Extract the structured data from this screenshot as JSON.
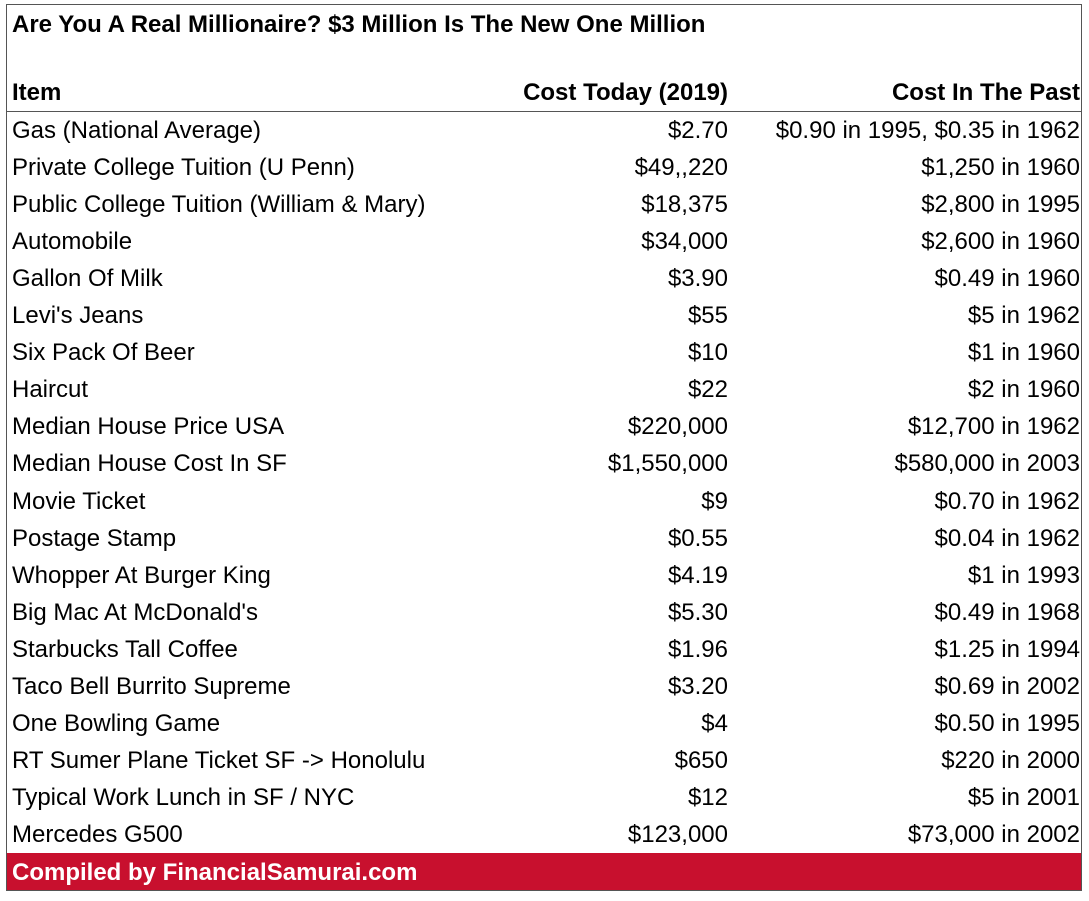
{
  "title": "Are You A Real Millionaire? $3 Million Is The New One Million",
  "table": {
    "header": [
      "Item",
      "Cost Today (2019)",
      "Cost In The Past"
    ],
    "rows": [
      [
        "Gas (National Average)",
        "$2.70",
        "$0.90 in 1995, $0.35 in 1962"
      ],
      [
        "Private College Tuition (U Penn)",
        "$49,,220",
        "$1,250 in 1960"
      ],
      [
        "Public College Tuition (William & Mary)",
        "$18,375",
        "$2,800 in 1995"
      ],
      [
        "Automobile",
        "$34,000",
        "$2,600 in 1960"
      ],
      [
        "Gallon Of Milk",
        "$3.90",
        "$0.49 in 1960"
      ],
      [
        "Levi's Jeans",
        "$55",
        "$5 in 1962"
      ],
      [
        "Six Pack Of Beer",
        "$10",
        "$1 in 1960"
      ],
      [
        "Haircut",
        "$22",
        "$2 in 1960"
      ],
      [
        "Median House Price USA",
        "$220,000",
        "$12,700 in 1962"
      ],
      [
        "Median House Cost In SF",
        "$1,550,000",
        "$580,000 in 2003"
      ],
      [
        "Movie Ticket",
        "$9",
        "$0.70 in 1962"
      ],
      [
        "Postage Stamp",
        "$0.55",
        "$0.04 in 1962"
      ],
      [
        "Whopper At Burger King",
        "$4.19",
        "$1 in 1993"
      ],
      [
        "Big Mac At McDonald's",
        "$5.30",
        "$0.49 in 1968"
      ],
      [
        "Starbucks Tall Coffee",
        "$1.96",
        "$1.25 in 1994"
      ],
      [
        "Taco Bell Burrito Supreme",
        "$3.20",
        "$0.69 in 2002"
      ],
      [
        "One Bowling Game",
        "$4",
        "$0.50 in 1995"
      ],
      [
        "RT Sumer Plane Ticket SF -> Honolulu",
        "$650",
        "$220 in 2000"
      ],
      [
        "Typical Work Lunch in SF / NYC",
        "$12",
        "$5 in 2001"
      ],
      [
        "Mercedes G500",
        "$123,000",
        "$73,000 in 2002"
      ]
    ]
  },
  "footer": "Compiled by FinancialSamurai.com"
}
